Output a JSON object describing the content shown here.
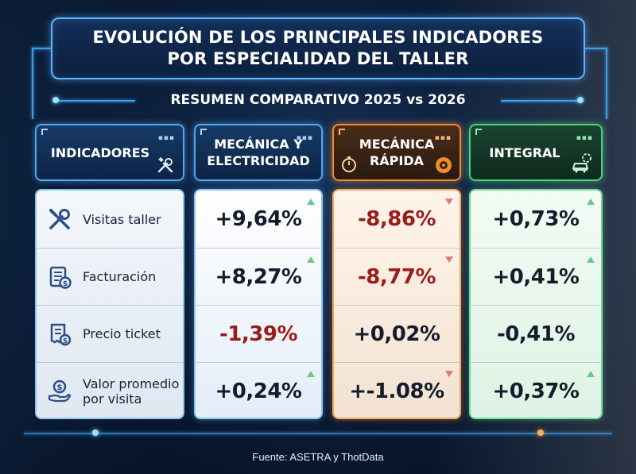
{
  "title": {
    "line1": "EVOLUCIÓN DE LOS PRINCIPALES INDICADORES",
    "line2": "POR ESPECIALIDAD DEL TALLER"
  },
  "subtitle": "RESUMEN COMPARATIVO 2025 vs 2026",
  "headers": {
    "indicadores": "INDICADORES",
    "mecanica_line1": "MECÁNICA Y",
    "mecanica_line2": "ELECTRICIDAD",
    "rapida_line1": "MECÁNICA",
    "rapida_line2": "RÁPIDA",
    "integral": "INTEGRAL"
  },
  "indicators": [
    {
      "label_line1": "Visitas taller",
      "label_line2": "",
      "icon": "wrench-icon"
    },
    {
      "label_line1": "Facturación",
      "label_line2": "",
      "icon": "invoice-icon"
    },
    {
      "label_line1": "Precio ticket",
      "label_line2": "",
      "icon": "receipt-icon"
    },
    {
      "label_line1": "Valor promedio",
      "label_line2": "por visita",
      "icon": "hand-coin-icon"
    }
  ],
  "mecanica": [
    {
      "value": "+9,64%",
      "trend": "up"
    },
    {
      "value": "+8,27%",
      "trend": "up"
    },
    {
      "value": "-1,39%",
      "trend": "none"
    },
    {
      "value": "+0,24%",
      "trend": "up"
    }
  ],
  "rapida": [
    {
      "value": "-8,86%",
      "trend": "down"
    },
    {
      "value": "-8,77%",
      "trend": "down"
    },
    {
      "value": "+0,02%",
      "trend": "none"
    },
    {
      "value": "+-1.08%",
      "trend": "down"
    }
  ],
  "integral": [
    {
      "value": "+0,73%",
      "trend": "up"
    },
    {
      "value": "+0,41%",
      "trend": "up"
    },
    {
      "value": "-0,41%",
      "trend": "none"
    },
    {
      "value": "+0,37%",
      "trend": "up"
    }
  ],
  "colors": {
    "blue_accent": "#4fa8f0",
    "orange_accent": "#f08a2a",
    "green_accent": "#4ad07a",
    "negative_text": "#9a1c1c",
    "positive_text": "#141c2c"
  },
  "source": "Fuente: ASETRA y ThotData"
}
